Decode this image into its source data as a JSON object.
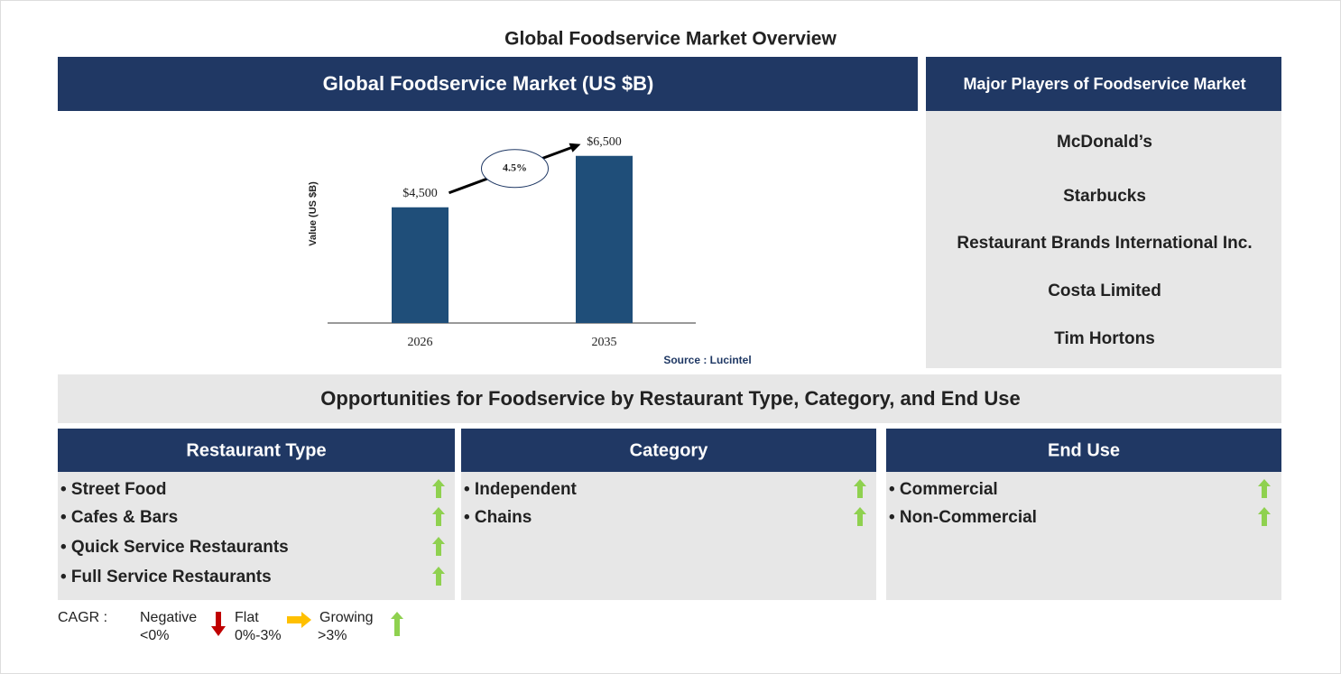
{
  "title": "Global Foodservice Market Overview",
  "chart_panel": {
    "heading": "Global Foodservice Market (US $B)"
  },
  "chart_data": {
    "type": "bar",
    "y_label": "Value (US $B)",
    "categories": [
      "2026",
      "2035"
    ],
    "values": [
      4500,
      6500
    ],
    "value_labels": [
      "$4,500",
      "$6,500"
    ],
    "color": "#1f4e79",
    "ylim": [
      0,
      8000
    ],
    "annotation": "4.5%",
    "source": "Source : Lucintel"
  },
  "players": {
    "heading": "Major Players of Foodservice Market",
    "items": [
      "McDonald’s",
      "Starbucks",
      "Restaurant Brands International Inc.",
      "Costa Limited",
      "Tim Hortons"
    ]
  },
  "opportunities": {
    "heading": "Opportunities for Foodservice by Restaurant Type, Category, and End Use",
    "columns": [
      {
        "heading": "Restaurant Type",
        "items": [
          "• Street Food",
          "• Cafes & Bars",
          "• Quick Service Restaurants",
          "• Full Service Restaurants"
        ]
      },
      {
        "heading": "Category",
        "items": [
          "• Independent",
          "• Chains"
        ]
      },
      {
        "heading": "End Use",
        "items": [
          "• Commercial",
          "• Non-Commercial"
        ]
      }
    ]
  },
  "legend": {
    "label": "CAGR :",
    "entries": [
      {
        "label": "Negative",
        "range": "<0%"
      },
      {
        "label": "Flat",
        "range": "0%-3%"
      },
      {
        "label": "Growing",
        "range": ">3%"
      }
    ]
  }
}
